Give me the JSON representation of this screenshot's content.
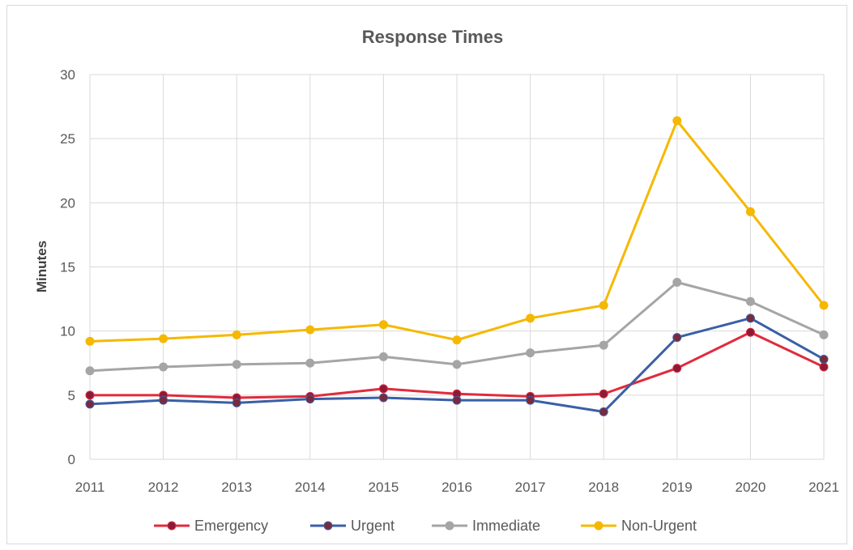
{
  "chart_data": {
    "type": "line",
    "title": "Response Times",
    "xlabel": "",
    "ylabel": "Minutes",
    "x": [
      "2011",
      "2012",
      "2013",
      "2014",
      "2015",
      "2016",
      "2017",
      "2018",
      "2019",
      "2020",
      "2021"
    ],
    "ylim": [
      0,
      30
    ],
    "yticks": [
      "0",
      "5",
      "10",
      "15",
      "20",
      "25",
      "30"
    ],
    "grid": true,
    "legend_position": "bottom",
    "series": [
      {
        "name": "Emergency",
        "color": "#e02b3c",
        "marker_color": "#8b1a3a",
        "values": [
          5.0,
          5.0,
          4.8,
          4.9,
          5.5,
          5.1,
          4.9,
          5.1,
          7.1,
          9.9,
          7.2
        ]
      },
      {
        "name": "Urgent",
        "color": "#3a5fa5",
        "marker_color": "#7a2a3a",
        "values": [
          4.3,
          4.6,
          4.4,
          4.7,
          4.8,
          4.6,
          4.6,
          3.7,
          9.5,
          11.0,
          7.8
        ]
      },
      {
        "name": "Immediate",
        "color": "#a5a5a5",
        "marker_color": "#a5a5a5",
        "values": [
          6.9,
          7.2,
          7.4,
          7.5,
          8.0,
          7.4,
          8.3,
          8.9,
          13.8,
          12.3,
          9.7
        ]
      },
      {
        "name": "Non-Urgent",
        "color": "#f5b800",
        "marker_color": "#f5b800",
        "values": [
          9.2,
          9.4,
          9.7,
          10.1,
          10.5,
          9.3,
          11.0,
          12.0,
          26.4,
          19.3,
          12.0
        ]
      }
    ]
  }
}
